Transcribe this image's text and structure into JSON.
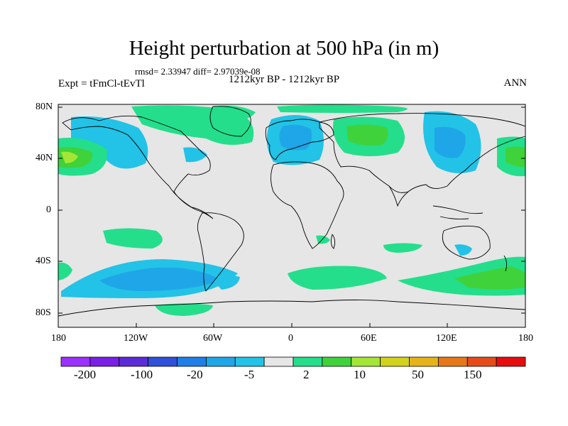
{
  "figure": {
    "title": "Height perturbation at 500 hPa (in m)",
    "stats": "rmsd= 2.33947 diff= 2.97039e-08",
    "experiment": "Expt = tFmCl-tEvTl",
    "period": "1212kyr BP - 1212kyr BP",
    "season": "ANN"
  },
  "axes": {
    "lat_labels": [
      "80N",
      "40N",
      "0",
      "40S",
      "80S"
    ],
    "lon_labels": [
      "180",
      "120W",
      "60W",
      "0",
      "60E",
      "120E",
      "180"
    ]
  },
  "colorbar": {
    "colors": [
      "#9b30ff",
      "#7a1fe6",
      "#5b2bd8",
      "#2f50d8",
      "#1f7fe8",
      "#1fa6e8",
      "#22c3e6",
      "#e6e6e6",
      "#24de8c",
      "#3fd23a",
      "#a4e635",
      "#d2d21a",
      "#e6b41a",
      "#e6781a",
      "#e64a1a",
      "#e60d0d"
    ],
    "labels": [
      "-200",
      "-100",
      "-20",
      "-5",
      "2",
      "10",
      "50",
      "150"
    ]
  },
  "fill_colors": {
    "background": "#e6e6e6",
    "neg_light": "#22c3e6",
    "neg_mid": "#1fa6e8",
    "pos_light": "#24de8c",
    "pos_mid": "#3fd23a",
    "pos_high": "#a4e635"
  }
}
